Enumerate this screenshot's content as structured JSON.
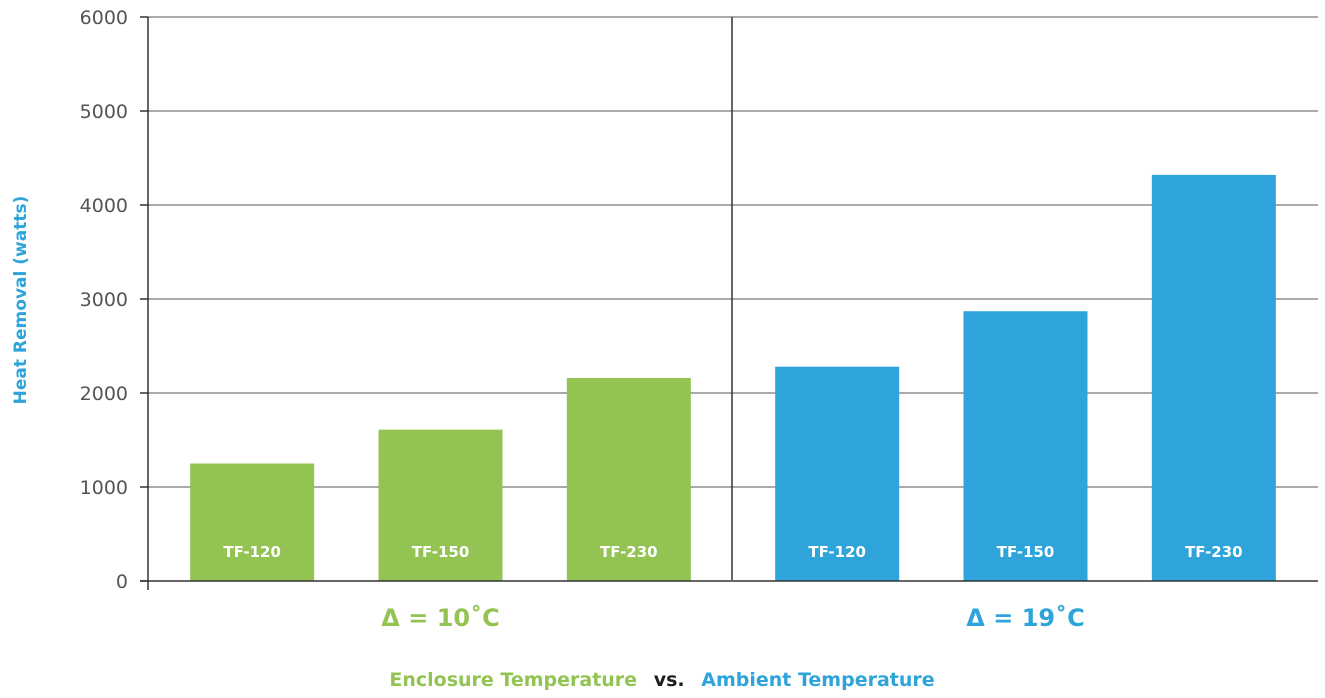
{
  "chart_data": {
    "type": "bar",
    "ylabel": "Heat Removal (watts)",
    "ylim": [
      0,
      6000
    ],
    "yticks": [
      "0",
      "1000",
      "2000",
      "3000",
      "4000",
      "5000",
      "6000"
    ],
    "grid": true,
    "groups": [
      {
        "label": "Δ = 10˚C",
        "color": "#92c353",
        "categories": [
          "TF-120",
          "TF-150",
          "TF-230"
        ],
        "values": [
          1250,
          1610,
          2160
        ]
      },
      {
        "label": "Δ = 19˚C",
        "color": "#2ea4db",
        "categories": [
          "TF-120",
          "TF-150",
          "TF-230"
        ],
        "values": [
          2280,
          2870,
          4320
        ]
      }
    ],
    "caption": {
      "left": "Enclosure Temperature",
      "middle": "vs.",
      "right": "Ambient Temperature"
    },
    "colors": {
      "enclosure": "#92c353",
      "vs": "#1f1f1f",
      "ambient": "#2ea4db",
      "ylabel": "#2ea4db"
    }
  }
}
